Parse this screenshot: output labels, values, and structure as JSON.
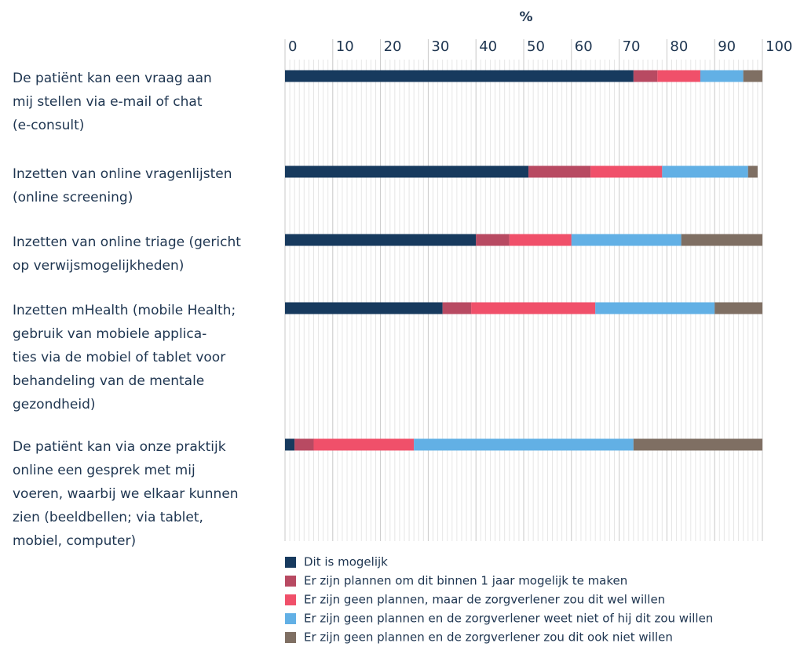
{
  "chart_data": {
    "type": "stacked_barh",
    "xlabel": "%",
    "categories": [
      "De patiënt kan een vraag aan\nmij stellen via e-mail of chat\n(e-consult)",
      "Inzetten van online vragenlijsten\n(online screening)",
      "Inzetten van online triage (gericht\nop verwijsmogelijkheden)",
      "Inzetten mHealth (mobile Health;\ngebruik van mobiele applica-\nties via de mobiel of tablet voor\nbehandeling van de mentale\ngezondheid)",
      "De patiënt kan via onze praktijk\nonline een gesprek met mij\nvoeren, waarbij we elkaar kunnen\nzien (beeldbellen; via tablet,\nmobiel, computer)"
    ],
    "series": [
      {
        "name": "Dit is mogelijk",
        "color": "#173a5e",
        "values": [
          73,
          51,
          40,
          33,
          2
        ]
      },
      {
        "name": "Er zijn plannen om dit binnen 1 jaar mogelijk te maken",
        "color": "#b84a62",
        "values": [
          5,
          13,
          7,
          6,
          4
        ]
      },
      {
        "name": "Er zijn geen plannen, maar de zorgverlener zou dit wel willen",
        "color": "#f0506a",
        "values": [
          9,
          15,
          13,
          26,
          21
        ]
      },
      {
        "name": "Er zijn geen plannen en de zorgverlener weet niet of hij dit zou willen",
        "color": "#62b0e5",
        "values": [
          9,
          18,
          23,
          25,
          46
        ]
      },
      {
        "name": "Er zijn geen plannen en de zorgverlener zou dit ook niet willen",
        "color": "#7f6f63",
        "values": [
          4,
          2,
          17,
          10,
          27
        ]
      }
    ],
    "xlim": [
      0,
      100
    ],
    "xticks": [
      0,
      10,
      20,
      30,
      40,
      50,
      60,
      70,
      80,
      90,
      100
    ],
    "grid": true
  }
}
